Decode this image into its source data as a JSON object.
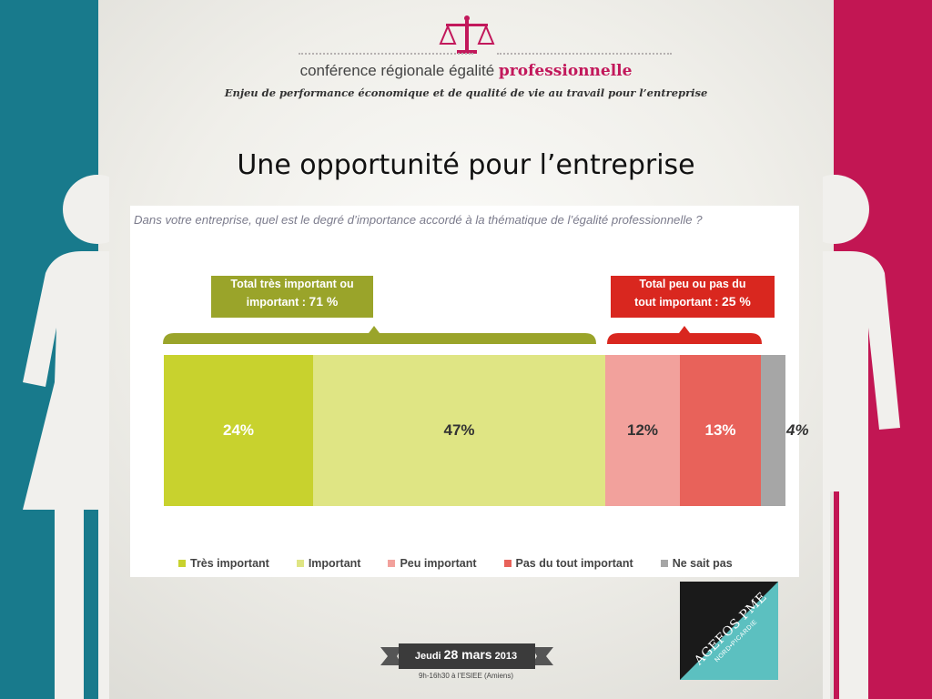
{
  "header": {
    "conf_prefix": "conférence régionale égalité",
    "conf_highlight": "professionnelle",
    "subtitle": "Enjeu de performance économique et de qualité de vie au travail pour l’entreprise"
  },
  "slide_title": "Une opportunité pour l’entreprise",
  "question": "Dans votre entreprise, quel est le degré d’importance accordé à la thématique de l’égalité professionnelle ?",
  "callouts": {
    "important_line1": "Total très important ou",
    "important_line2_prefix": "important : ",
    "important_value": "71 %",
    "not_important_line1": "Total peu ou pas du",
    "not_important_line2_prefix": "tout important : ",
    "not_important_value": "25 %"
  },
  "chart_data": {
    "type": "bar",
    "subtype": "stacked-100-horizontal",
    "categories": [
      "Très important",
      "Important",
      "Peu important",
      "Pas du tout important",
      "Ne sait pas"
    ],
    "values": [
      24,
      47,
      12,
      13,
      4
    ],
    "value_labels": [
      "24%",
      "47%",
      "12%",
      "13%",
      "4%"
    ],
    "colors": [
      "#c8d22e",
      "#dfe584",
      "#f2a19c",
      "#e8625a",
      "#a6a6a6"
    ],
    "legend_position": "bottom"
  },
  "footer": {
    "date_prefix": "Jeudi ",
    "date_big": "28 mars",
    "date_year": " 2013",
    "venue": "9h-16h30 à l’ESIEE (Amiens)"
  },
  "logo": {
    "name": "AGEFOS PME",
    "region": "NORD•PICARDIE"
  }
}
